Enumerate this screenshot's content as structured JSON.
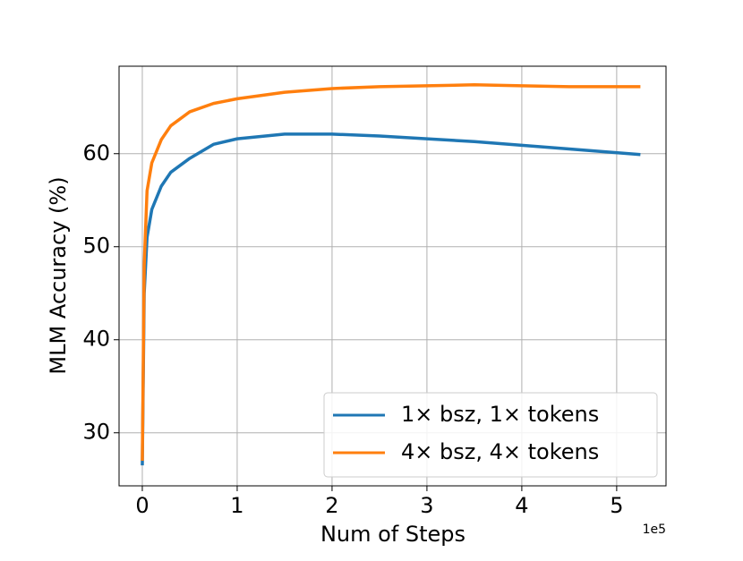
{
  "chart_data": {
    "type": "line",
    "x_label": "Num of Steps",
    "y_label": "MLM Accuracy (%)",
    "x_offset_label": "1e5",
    "x": [
      0,
      0.02,
      0.05,
      0.1,
      0.2,
      0.3,
      0.5,
      0.75,
      1.0,
      1.5,
      2.0,
      2.5,
      3.0,
      3.5,
      4.0,
      4.5,
      5.25
    ],
    "series": [
      {
        "name": "1× bsz, 1× tokens",
        "color": "#1f77b4",
        "values": [
          26.5,
          45,
          51,
          54,
          56.5,
          58,
          59.5,
          61,
          61.6,
          62.1,
          62.1,
          61.9,
          61.6,
          61.3,
          60.9,
          60.5,
          59.9
        ]
      },
      {
        "name": "4× bsz, 4× tokens",
        "color": "#ff7f0e",
        "values": [
          27,
          48,
          56,
          59,
          61.5,
          63,
          64.5,
          65.4,
          65.9,
          66.6,
          67,
          67.2,
          67.3,
          67.4,
          67.3,
          67.2,
          67.2
        ]
      }
    ],
    "xlim": [
      -0.245,
      5.52
    ],
    "ylim": [
      24.3,
      69.4
    ],
    "xticks": [
      0,
      1,
      2,
      3,
      4,
      5
    ],
    "yticks": [
      30,
      40,
      50,
      60
    ],
    "grid": true,
    "legend": "lower right"
  }
}
